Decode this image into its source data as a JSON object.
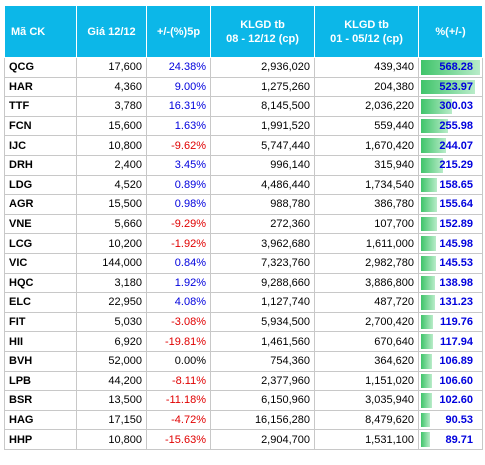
{
  "headers": {
    "symbol": "Mã CK",
    "price": "Giá 12/12",
    "change": "+/-(%)5p",
    "vol_a_1": "KLGD tb",
    "vol_a_2": "08 - 12/12 (cp)",
    "vol_b_1": "KLGD tb",
    "vol_b_2": "01 - 05/12 (cp)",
    "ratio": "%(+/-)"
  },
  "colors": {
    "header_bg": "#0cb7e8",
    "positive": "#0000dd",
    "negative": "#e00000",
    "bar": "#3fc46a"
  },
  "rows": [
    {
      "symbol": "QCG",
      "price": "17,600",
      "change": "24.38%",
      "dir": "up",
      "vol_a": "2,936,020",
      "vol_b": "439,340",
      "ratio": "568.28"
    },
    {
      "symbol": "HAR",
      "price": "4,360",
      "change": "9.00%",
      "dir": "up",
      "vol_a": "1,275,260",
      "vol_b": "204,380",
      "ratio": "523.97"
    },
    {
      "symbol": "TTF",
      "price": "3,780",
      "change": "16.31%",
      "dir": "up",
      "vol_a": "8,145,500",
      "vol_b": "2,036,220",
      "ratio": "300.03"
    },
    {
      "symbol": "FCN",
      "price": "15,600",
      "change": "1.63%",
      "dir": "up",
      "vol_a": "1,991,520",
      "vol_b": "559,440",
      "ratio": "255.98"
    },
    {
      "symbol": "IJC",
      "price": "10,800",
      "change": "-9.62%",
      "dir": "down",
      "vol_a": "5,747,440",
      "vol_b": "1,670,420",
      "ratio": "244.07"
    },
    {
      "symbol": "DRH",
      "price": "2,400",
      "change": "3.45%",
      "dir": "up",
      "vol_a": "996,140",
      "vol_b": "315,940",
      "ratio": "215.29"
    },
    {
      "symbol": "LDG",
      "price": "4,520",
      "change": "0.89%",
      "dir": "up",
      "vol_a": "4,486,440",
      "vol_b": "1,734,540",
      "ratio": "158.65"
    },
    {
      "symbol": "AGR",
      "price": "15,500",
      "change": "0.98%",
      "dir": "up",
      "vol_a": "988,780",
      "vol_b": "386,780",
      "ratio": "155.64"
    },
    {
      "symbol": "VNE",
      "price": "5,660",
      "change": "-9.29%",
      "dir": "down",
      "vol_a": "272,360",
      "vol_b": "107,700",
      "ratio": "152.89"
    },
    {
      "symbol": "LCG",
      "price": "10,200",
      "change": "-1.92%",
      "dir": "down",
      "vol_a": "3,962,680",
      "vol_b": "1,611,000",
      "ratio": "145.98"
    },
    {
      "symbol": "VIC",
      "price": "144,000",
      "change": "0.84%",
      "dir": "up",
      "vol_a": "7,323,760",
      "vol_b": "2,982,780",
      "ratio": "145.53"
    },
    {
      "symbol": "HQC",
      "price": "3,180",
      "change": "1.92%",
      "dir": "up",
      "vol_a": "9,288,660",
      "vol_b": "3,886,800",
      "ratio": "138.98"
    },
    {
      "symbol": "ELC",
      "price": "22,950",
      "change": "4.08%",
      "dir": "up",
      "vol_a": "1,127,740",
      "vol_b": "487,720",
      "ratio": "131.23"
    },
    {
      "symbol": "FIT",
      "price": "5,030",
      "change": "-3.08%",
      "dir": "down",
      "vol_a": "5,934,500",
      "vol_b": "2,700,420",
      "ratio": "119.76"
    },
    {
      "symbol": "HII",
      "price": "6,920",
      "change": "-19.81%",
      "dir": "down",
      "vol_a": "1,461,560",
      "vol_b": "670,640",
      "ratio": "117.94"
    },
    {
      "symbol": "BVH",
      "price": "52,000",
      "change": "0.00%",
      "dir": "flat",
      "vol_a": "754,360",
      "vol_b": "364,620",
      "ratio": "106.89"
    },
    {
      "symbol": "LPB",
      "price": "44,200",
      "change": "-8.11%",
      "dir": "down",
      "vol_a": "2,377,960",
      "vol_b": "1,151,020",
      "ratio": "106.60"
    },
    {
      "symbol": "BSR",
      "price": "13,500",
      "change": "-11.18%",
      "dir": "down",
      "vol_a": "6,150,960",
      "vol_b": "3,035,940",
      "ratio": "102.60"
    },
    {
      "symbol": "HAG",
      "price": "17,150",
      "change": "-4.72%",
      "dir": "down",
      "vol_a": "16,156,280",
      "vol_b": "8,479,620",
      "ratio": "90.53"
    },
    {
      "symbol": "HHP",
      "price": "10,800",
      "change": "-15.63%",
      "dir": "down",
      "vol_a": "2,904,700",
      "vol_b": "1,531,100",
      "ratio": "89.71"
    }
  ]
}
